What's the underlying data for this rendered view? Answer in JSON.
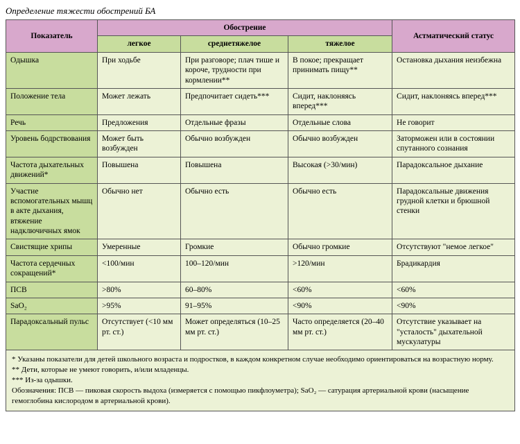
{
  "title": "Определение тяжести обострений БА",
  "header": {
    "indicator": "Показатель",
    "exacerbation": "Обострение",
    "status": "Астматический статус",
    "levels": [
      "легкое",
      "среднетяжелое",
      "тяжелое"
    ]
  },
  "rows": [
    {
      "label": "Одышка",
      "c": [
        "При ходьбе",
        "При разговоре; плач тише и короче, трудности при кормлении**",
        "В покое; прекращает принимать пищу**",
        "Остановка дыхания неизбежна"
      ]
    },
    {
      "label": "Положение тела",
      "c": [
        "Может лежать",
        "Предпочитает сидеть***",
        "Сидит, наклоняясь вперед***",
        "Сидит, наклоняясь вперед***"
      ]
    },
    {
      "label": "Речь",
      "c": [
        "Предложения",
        "Отдельные фразы",
        "Отдельные слова",
        "Не говорит"
      ]
    },
    {
      "label": "Уровень бодрствования",
      "c": [
        "Может быть возбужден",
        "Обычно возбужден",
        "Обычно возбужден",
        "Заторможен или в состоянии спутанного сознания"
      ]
    },
    {
      "label": "Частота дыхательных движений*",
      "c": [
        "Повышена",
        "Повышена",
        "Высокая (>30/мин)",
        "Парадоксальное дыхание"
      ]
    },
    {
      "label": "Участие вспомогательных мышц в акте дыхания, втяжение надключичных ямок",
      "c": [
        "Обычно нет",
        "Обычно есть",
        "Обычно есть",
        "Парадоксальные движения грудной клетки и брюшной стенки"
      ]
    },
    {
      "label": "Свистящие хрипы",
      "c": [
        "Умеренные",
        "Громкие",
        "Обычно громкие",
        "Отсутствуют \"немое легкое\""
      ]
    },
    {
      "label": "Частота сердечных сокращений*",
      "c": [
        "<100/мин",
        "100–120/мин",
        ">120/мин",
        "Брадикардия"
      ]
    },
    {
      "label": "ПСВ",
      "c": [
        ">80%",
        "60–80%",
        "<60%",
        "<60%"
      ]
    },
    {
      "label": "SaO₂",
      "c": [
        ">95%",
        "91–95%",
        "<90%",
        "<90%"
      ]
    },
    {
      "label": "Парадоксальный пульс",
      "c": [
        "Отсутствует (<10 мм рт. ст.)",
        "Может определяться (10–25 мм рт. ст.)",
        "Часто определяется (20–40 мм рт. ст.)",
        "Отсутствие указывает на \"усталость\" дыхательной мускулатуры"
      ]
    }
  ],
  "footnotes": [
    "  * Указаны показатели для детей школьного возраста и подростков, в каждом конкретном случае необходимо ориентироваться на возрастную норму.",
    " ** Дети, которые не умеют говорить, и/или младенцы.",
    "*** Из-за одышки.",
    "Обозначения: ПСВ — пиковая скорость выдоха (измеряется с помощью пикфлоуметра); SaO₂ — сатурация артериальной крови (насыщение гемоглобина кислородом в артериальной крови)."
  ]
}
